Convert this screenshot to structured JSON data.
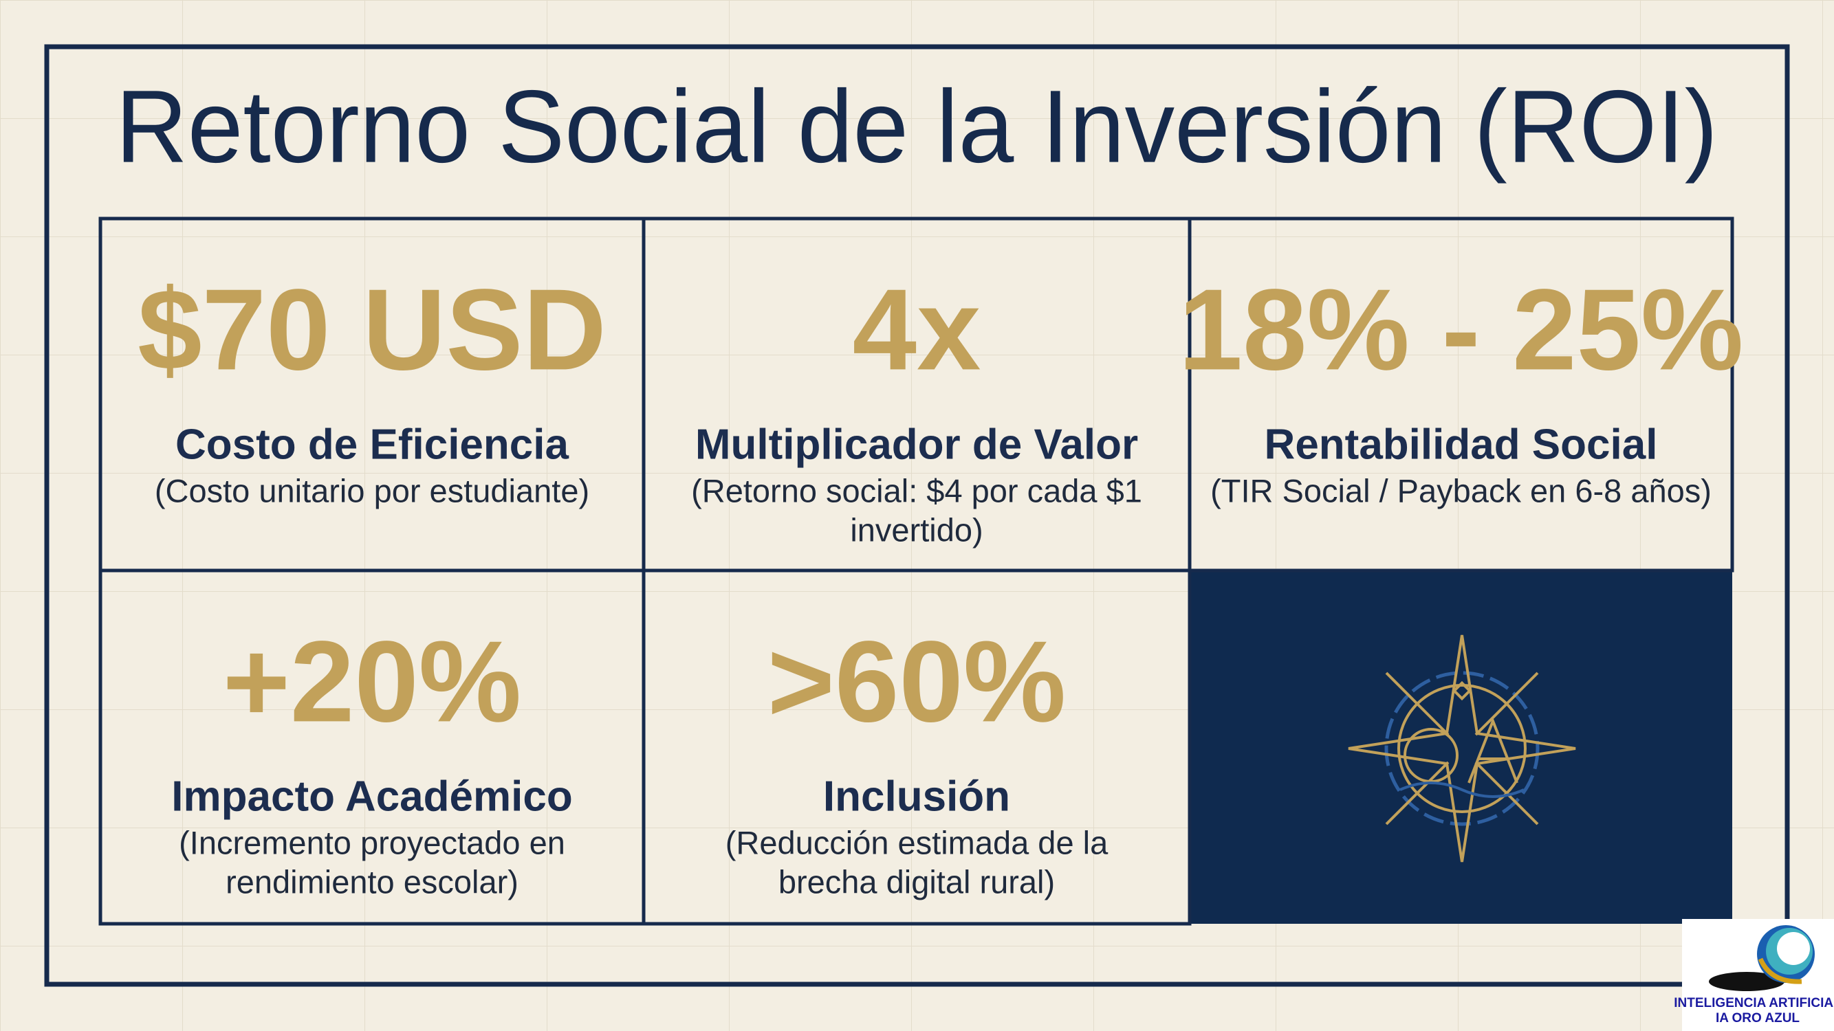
{
  "title": "Retorno Social de la Inversión (ROI)",
  "cards": [
    {
      "metric": "$70 USD",
      "label": "Costo de Eficiencia",
      "description": [
        "(Costo unitario por estudiante)"
      ]
    },
    {
      "metric": "4x",
      "label": "Multiplicador de Valor",
      "description": [
        "(Retorno social: $4 por cada $1",
        "invertido)"
      ]
    },
    {
      "metric": "18% - 25%",
      "label": "Rentabilidad Social",
      "description": [
        "(TIR Social / Payback en 6-8 años)"
      ]
    },
    {
      "metric": "+20%",
      "label": "Impacto Académico",
      "description": [
        "(Incremento proyectado en",
        "rendimiento escolar)"
      ]
    },
    {
      "metric": ">60%",
      "label": "Inclusión",
      "description": [
        "(Reducción estimada de la",
        "brecha digital rural)"
      ]
    }
  ],
  "logo": {
    "line1": "INTELIGENCIA ARTIFICIAL",
    "line2": "IA ORO AZUL"
  }
}
